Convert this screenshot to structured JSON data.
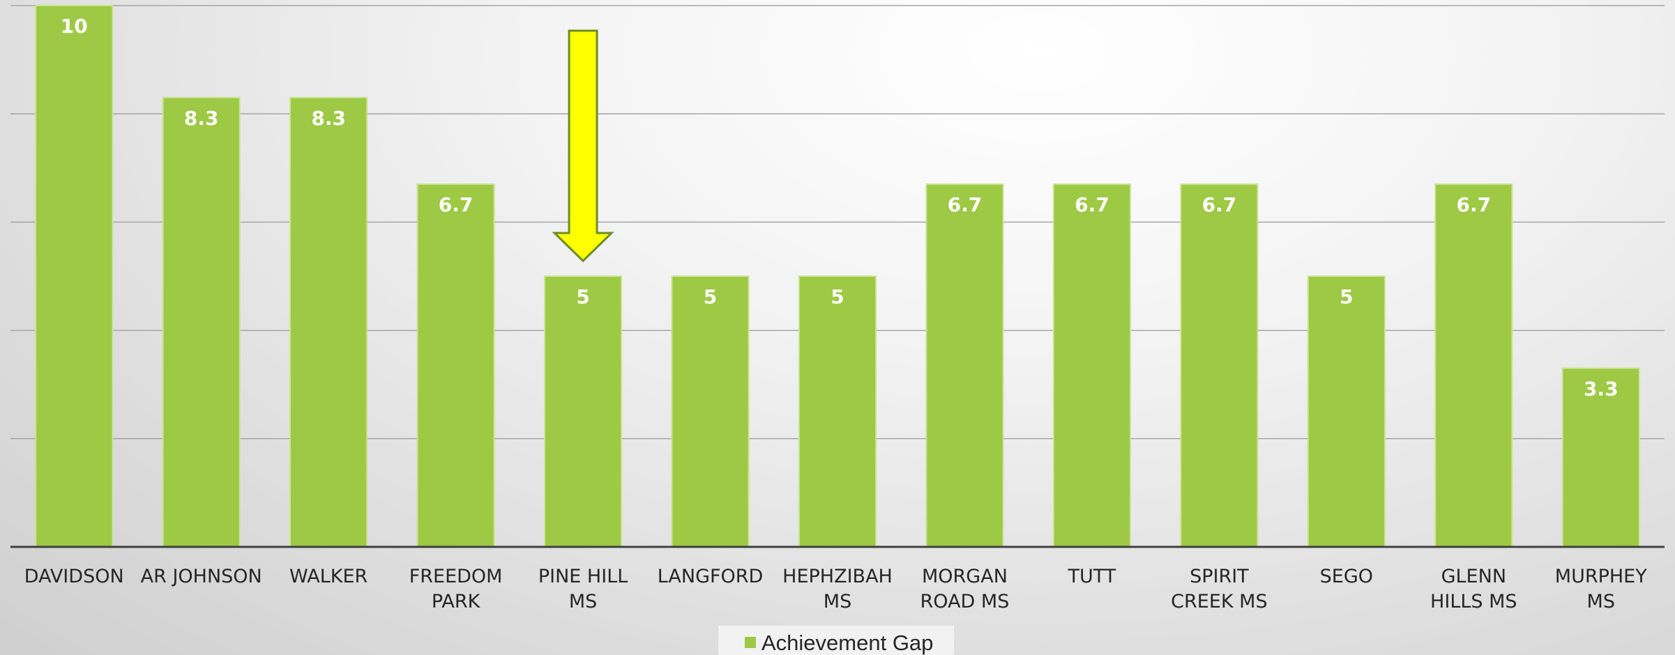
{
  "chart_data": {
    "type": "bar",
    "categories": [
      "DAVIDSON",
      "AR JOHNSON",
      "WALKER",
      "FREEDOM PARK",
      "PINE HILL MS",
      "LANGFORD",
      "HEPHZIBAH MS",
      "MORGAN ROAD MS",
      "TUTT",
      "SPIRIT CREEK MS",
      "SEGO",
      "GLENN HILLS MS",
      "MURPHEY MS"
    ],
    "category_lines": [
      [
        "DAVIDSON"
      ],
      [
        "AR JOHNSON"
      ],
      [
        "WALKER"
      ],
      [
        "FREEDOM",
        "PARK"
      ],
      [
        "PINE HILL",
        "MS"
      ],
      [
        "LANGFORD"
      ],
      [
        "HEPHZIBAH",
        "MS"
      ],
      [
        "MORGAN",
        "ROAD MS"
      ],
      [
        "TUTT"
      ],
      [
        "SPIRIT",
        "CREEK MS"
      ],
      [
        "SEGO"
      ],
      [
        "GLENN",
        "HILLS MS"
      ],
      [
        "MURPHEY",
        "MS"
      ]
    ],
    "series": [
      {
        "name": "Achievement Gap",
        "values": [
          10,
          8.3,
          8.3,
          6.7,
          5,
          5,
          5,
          6.7,
          6.7,
          6.7,
          5,
          6.7,
          3.3
        ],
        "color": "#9dc944"
      }
    ],
    "data_labels": [
      "10",
      "8.3",
      "8.3",
      "6.7",
      "5",
      "5",
      "5",
      "6.7",
      "6.7",
      "6.7",
      "5",
      "6.7",
      "3.3"
    ],
    "ylim": [
      0,
      10
    ],
    "gridline_step": 2,
    "grid": true,
    "legend": {
      "position": "bottom-center",
      "label": "Achievement Gap"
    },
    "annotation": {
      "type": "arrow",
      "points_to_category": "PINE HILL MS",
      "color": "#ffff00",
      "stroke": "#6b8e23"
    },
    "colors": {
      "bar": "#9dc944",
      "bar_edge": "#c9e38f",
      "gridline": "#a6a6a6",
      "axis": "#404040",
      "text": "#262626"
    }
  }
}
